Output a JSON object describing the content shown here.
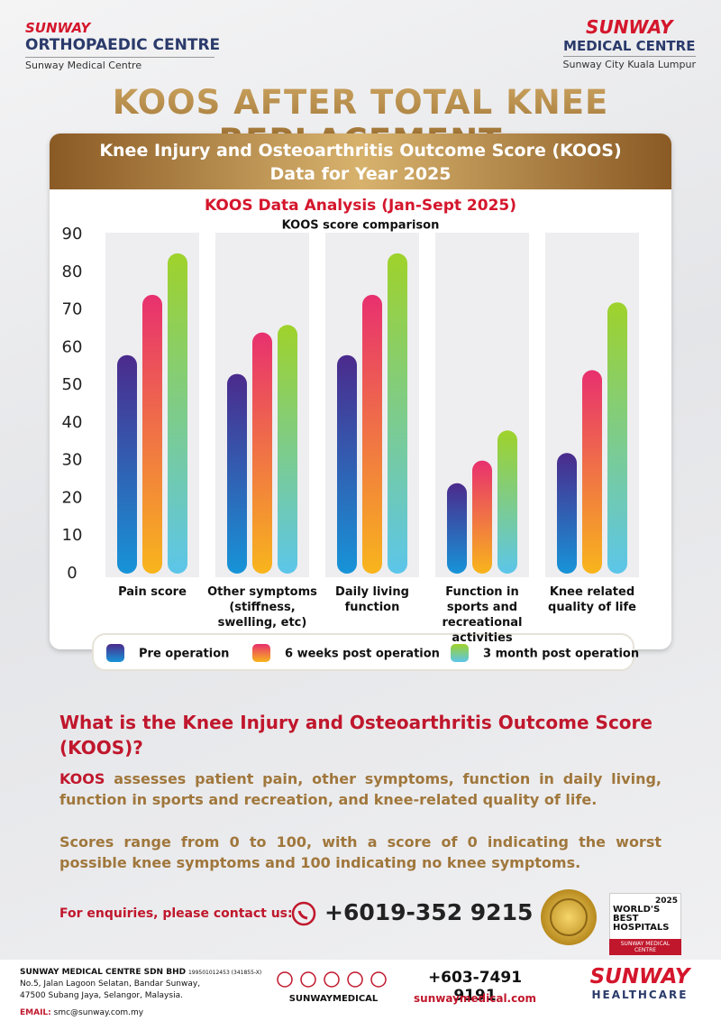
{
  "header": {
    "left_brand": "SUNWAY",
    "left_title": "ORTHOPAEDIC CENTRE",
    "left_sub": "Sunway Medical Centre",
    "right_brand": "SUNWAY",
    "right_title": "MEDICAL CENTRE",
    "right_sub": "Sunway City Kuala Lumpur"
  },
  "title": "KOOS AFTER TOTAL KNEE REPLACEMENT",
  "card": {
    "heading_line1": "Knee Injury and Osteoarthritis Outcome Score (KOOS)",
    "heading_line2": "Data for Year 2025"
  },
  "chart_data": {
    "type": "bar",
    "title": "KOOS Data Analysis (Jan-Sept 2025)",
    "subtitle": "KOOS score comparison",
    "categories": [
      "Pain score",
      "Other symptoms (stiffness, swelling, etc)",
      "Daily living function",
      "Function in sports and recreational activities",
      "Knee related quality of life"
    ],
    "series": [
      {
        "name": "Pre operation",
        "color": [
          "#4b2a8c",
          "#1794d8"
        ],
        "values": [
          58,
          53,
          58,
          24,
          32
        ]
      },
      {
        "name": "6 weeks post operation",
        "color": [
          "#e8306f",
          "#f8b51c"
        ],
        "values": [
          74,
          64,
          74,
          30,
          54
        ]
      },
      {
        "name": "3 month post operation",
        "color": [
          "#9fd22a",
          "#5cc6ea"
        ],
        "values": [
          85,
          66,
          85,
          38,
          72
        ]
      }
    ],
    "ylim": [
      0,
      90
    ],
    "yticks": [
      0,
      10,
      20,
      30,
      40,
      50,
      60,
      70,
      80,
      90
    ],
    "grid": false,
    "legend": "bottom"
  },
  "info": {
    "question": "What is the Knee Injury and Osteoarthritis Outcome Score (KOOS)?",
    "p1_highlight": "KOOS",
    "p1_rest": "assesses patient pain, other symptoms, function in daily living, function in sports and recreation, and knee-related quality of life.",
    "p2": "Scores range from 0 to 100, with a score of 0 indicating the worst possible knee symptoms and 100 indicating no knee symptoms."
  },
  "contact": {
    "label": "For enquiries, please contact us:",
    "phone": "+6019-352 9215"
  },
  "badge": {
    "line1": "WORLD'S",
    "line2": "BEST",
    "line3": "HOSPITALS",
    "year": "2025",
    "name": "SUNWAY MEDICAL CENTRE"
  },
  "footer": {
    "company": "SUNWAY MEDICAL CENTRE SDN BHD",
    "reg": "199501012453 (341855-X)",
    "address1": "No.5, Jalan Lagoon Selatan, Bandar Sunway,",
    "address2": "47500 Subang Jaya, Selangor, Malaysia.",
    "email_label": "EMAIL:",
    "email": "smc@sunway.com.my",
    "social": "SUNWAYMEDICAL",
    "phone": "+603-7491 9191",
    "web": "sunwaymedical.com",
    "brand": "SUNWAY",
    "brand_sub": "HEALTHCARE"
  }
}
